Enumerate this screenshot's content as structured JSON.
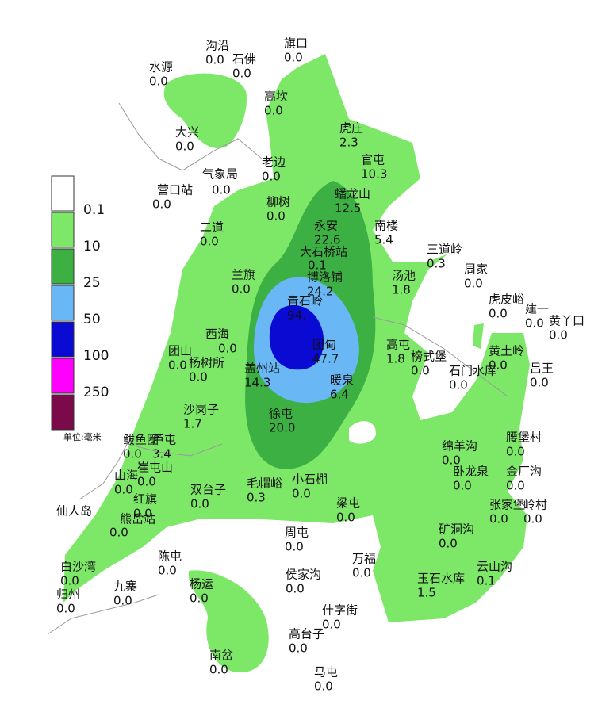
{
  "legend": {
    "labels": [
      "0.1",
      "10",
      "25",
      "50",
      "100",
      "250"
    ],
    "unit": "单位:毫米"
  },
  "stations": [
    {
      "name": "沟沿",
      "value": "0.0"
    },
    {
      "name": "石佛",
      "value": "0.0"
    },
    {
      "name": "旗口",
      "value": "0.0"
    },
    {
      "name": "水源",
      "value": "0.0"
    },
    {
      "name": "高坎",
      "value": "0.0"
    },
    {
      "name": "虎庄",
      "value": "2.3"
    },
    {
      "name": "大兴",
      "value": "0.0"
    },
    {
      "name": "官屯",
      "value": "10.3"
    },
    {
      "name": "老边",
      "value": "0.0"
    },
    {
      "name": "气象局",
      "value": "0.0"
    },
    {
      "name": "营口站",
      "value": "0.0"
    },
    {
      "name": "蟠龙山",
      "value": "12.5"
    },
    {
      "name": "柳树",
      "value": "0.0"
    },
    {
      "name": "永安",
      "value": "22.6"
    },
    {
      "name": "南楼",
      "value": "5.4"
    },
    {
      "name": "二道",
      "value": "0.0"
    },
    {
      "name": "大石桥站",
      "value": "0.1"
    },
    {
      "name": "三道岭",
      "value": "0.3"
    },
    {
      "name": "周家",
      "value": "0.0"
    },
    {
      "name": "兰旗",
      "value": "0.0"
    },
    {
      "name": "博洛铺",
      "value": "24.2"
    },
    {
      "name": "汤池",
      "value": "1.8"
    },
    {
      "name": "青石岭",
      "value": "94."
    },
    {
      "name": "虎皮峪",
      "value": "0.0"
    },
    {
      "name": "建一",
      "value": "0.0"
    },
    {
      "name": "黄丫口",
      "value": "0.0"
    },
    {
      "name": "西海",
      "value": "0.0"
    },
    {
      "name": "团山",
      "value": "0.0"
    },
    {
      "name": "杨树所",
      "value": "0.0"
    },
    {
      "name": "团甸",
      "value": "47.7"
    },
    {
      "name": "高屯",
      "value": "1.8"
    },
    {
      "name": "榜式堡",
      "value": "0.0"
    },
    {
      "name": "黄土岭",
      "value": "0.0"
    },
    {
      "name": "石门水库",
      "value": "0.0"
    },
    {
      "name": "吕王",
      "value": "0.0"
    },
    {
      "name": "盖州站",
      "value": "14.3"
    },
    {
      "name": "暖泉",
      "value": "6.4"
    },
    {
      "name": "沙岗子",
      "value": "1.7"
    },
    {
      "name": "徐屯",
      "value": "20.0"
    },
    {
      "name": "鲅鱼圈",
      "value": "0.0"
    },
    {
      "name": "芦屯",
      "value": "3.4"
    },
    {
      "name": "绵羊沟",
      "value": "0.0"
    },
    {
      "name": "腰堡村",
      "value": "0.0"
    },
    {
      "name": "山海",
      "value": "0.0"
    },
    {
      "name": "崔屯山",
      "value": "0.0"
    },
    {
      "name": "双台子",
      "value": "0.0"
    },
    {
      "name": "毛帽峪",
      "value": "0.3"
    },
    {
      "name": "小石棚",
      "value": "0.0"
    },
    {
      "name": "卧龙泉",
      "value": "0.0"
    },
    {
      "name": "金厂沟",
      "value": "0.0"
    },
    {
      "name": "仙人岛"
    },
    {
      "name": "红旗",
      "value": "0.0"
    },
    {
      "name": "熊岳站",
      "value": "0.0"
    },
    {
      "name": "梁屯",
      "value": "0.0"
    },
    {
      "name": "张家堡",
      "value": "0.0"
    },
    {
      "name": "岭村",
      "value": "0.0"
    },
    {
      "name": "周屯",
      "value": "0.0"
    },
    {
      "name": "矿洞沟",
      "value": "0.0"
    },
    {
      "name": "陈屯",
      "value": "0.0"
    },
    {
      "name": "万福",
      "value": "0.0"
    },
    {
      "name": "白沙湾",
      "value": "0.0"
    },
    {
      "name": "侯家沟",
      "value": "0.0"
    },
    {
      "name": "玉石水库",
      "value": "1.5"
    },
    {
      "name": "云山沟",
      "value": "0.1"
    },
    {
      "name": "杨运",
      "value": "0.0"
    },
    {
      "name": "归州",
      "value": "0.0"
    },
    {
      "name": "九寨",
      "value": "0.0"
    },
    {
      "name": "什字街",
      "value": "0.0"
    },
    {
      "name": "高台子",
      "value": "0.0"
    },
    {
      "name": "南岔",
      "value": "0.0"
    },
    {
      "name": "马屯",
      "value": "0.0"
    }
  ]
}
